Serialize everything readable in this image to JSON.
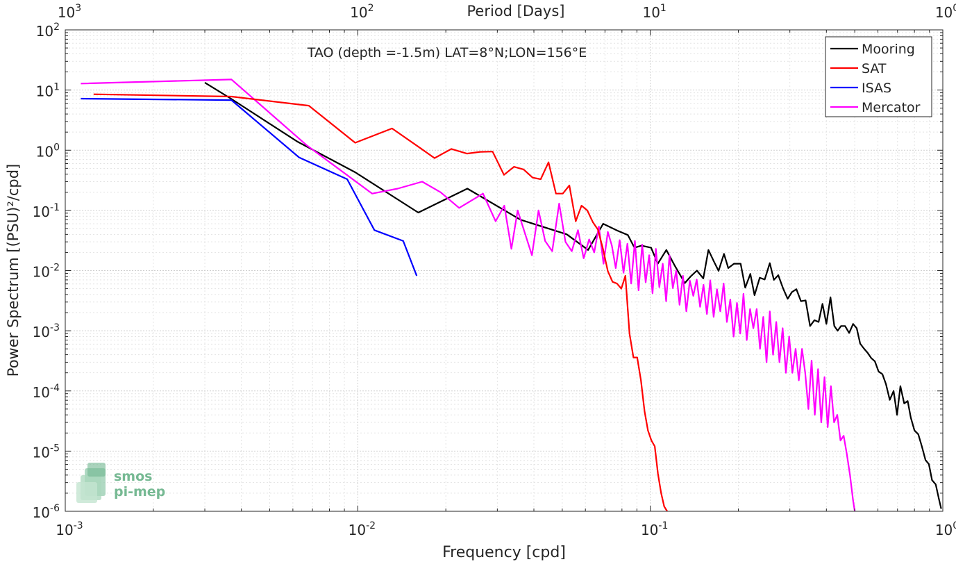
{
  "chart_data": {
    "type": "line",
    "title": "TAO (depth =-1.5m) LAT=8°N;LON=156°E",
    "xlabel": "Frequency [cpd]",
    "ylabel": "Power Spectrum [(PSU)²/cpd]",
    "top_xlabel": "Period [Days]",
    "x_scale": "log",
    "y_scale": "log",
    "xlim": [
      0.001,
      1
    ],
    "ylim": [
      1e-06,
      100
    ],
    "grid": true,
    "legend_position": "top-right",
    "x_ticks": [
      0.001,
      0.01,
      0.1,
      1
    ],
    "x_tick_labels": [
      {
        "base": "10",
        "exp": "-3"
      },
      {
        "base": "10",
        "exp": "-2"
      },
      {
        "base": "10",
        "exp": "-1"
      },
      {
        "base": "10",
        "exp": "0"
      }
    ],
    "y_ticks": [
      1e-06,
      1e-05,
      0.0001,
      0.001,
      0.01,
      0.1,
      1,
      10,
      100
    ],
    "y_tick_labels": [
      {
        "base": "10",
        "exp": "-6"
      },
      {
        "base": "10",
        "exp": "-5"
      },
      {
        "base": "10",
        "exp": "-4"
      },
      {
        "base": "10",
        "exp": "-3"
      },
      {
        "base": "10",
        "exp": "-2"
      },
      {
        "base": "10",
        "exp": "-1"
      },
      {
        "base": "10",
        "exp": "0"
      },
      {
        "base": "10",
        "exp": "1"
      },
      {
        "base": "10",
        "exp": "2"
      }
    ],
    "top_ticks_freq": [
      0.001,
      0.01,
      0.1,
      1
    ],
    "top_tick_labels": [
      {
        "base": "10",
        "exp": "3"
      },
      {
        "base": "10",
        "exp": "2"
      },
      {
        "base": "10",
        "exp": "1"
      },
      {
        "base": "10",
        "exp": "0"
      }
    ],
    "series": [
      {
        "name": "Mooring",
        "color": "#000000",
        "x": [
          0.003,
          0.0037,
          0.0062,
          0.0098,
          0.0161,
          0.0237,
          0.036,
          0.0518,
          0.0613,
          0.069,
          0.0773,
          0.0838,
          0.0883,
          0.0933,
          0.1006,
          0.1061,
          0.1135,
          0.1213,
          0.1312,
          0.1378,
          0.1443,
          0.1518,
          0.158,
          0.1652,
          0.1712,
          0.1786,
          0.1848,
          0.1932,
          0.2036,
          0.2111,
          0.2198,
          0.2271,
          0.2366,
          0.246,
          0.2562,
          0.2646,
          0.2739,
          0.2842,
          0.2948,
          0.305,
          0.3158,
          0.3275,
          0.3396,
          0.3517,
          0.3641,
          0.3762,
          0.3878,
          0.3999,
          0.4131,
          0.4257,
          0.4369,
          0.4487,
          0.4632,
          0.4784,
          0.4935,
          0.5079,
          0.5219,
          0.5369,
          0.5532,
          0.5695,
          0.586,
          0.6033,
          0.6216,
          0.6393,
          0.6585,
          0.6786,
          0.6975,
          0.7163,
          0.7378,
          0.7584,
          0.7775,
          0.8003,
          0.8247,
          0.8479,
          0.8727,
          0.8958,
          0.9187,
          0.9456,
          0.9698,
          0.9876
        ],
        "y": [
          13.3,
          7.1,
          1.4,
          0.43,
          0.092,
          0.23,
          0.07,
          0.04,
          0.022,
          0.06,
          0.046,
          0.039,
          0.024,
          0.026,
          0.024,
          0.013,
          0.022,
          0.012,
          0.0062,
          0.0081,
          0.01,
          0.0074,
          0.022,
          0.014,
          0.0099,
          0.019,
          0.011,
          0.013,
          0.013,
          0.0052,
          0.0088,
          0.0039,
          0.0076,
          0.0071,
          0.0133,
          0.007,
          0.0084,
          0.0051,
          0.0034,
          0.0044,
          0.0049,
          0.0031,
          0.0032,
          0.0012,
          0.0015,
          0.0014,
          0.0028,
          0.0013,
          0.0036,
          0.0012,
          0.001,
          0.0012,
          0.0012,
          0.00092,
          0.0013,
          0.0011,
          0.00061,
          0.00051,
          0.00043,
          0.00035,
          0.00031,
          0.00021,
          0.00019,
          0.00013,
          7.1e-05,
          0.0001,
          4e-05,
          0.00012,
          6.2e-05,
          6.8e-05,
          3.6e-05,
          2.2e-05,
          1.9e-05,
          1.2e-05,
          7.1e-06,
          6.1e-06,
          3.3e-06,
          2.8e-06,
          1.6e-06,
          1.1e-06
        ]
      },
      {
        "name": "SAT",
        "color": "#ff0000",
        "x": [
          0.00125,
          0.0037,
          0.0068,
          0.0098,
          0.0131,
          0.0163,
          0.0183,
          0.0209,
          0.0236,
          0.0262,
          0.0289,
          0.0316,
          0.0342,
          0.0369,
          0.0396,
          0.0422,
          0.0449,
          0.0476,
          0.0502,
          0.0529,
          0.0556,
          0.0582,
          0.0609,
          0.0636,
          0.0662,
          0.0689,
          0.0716,
          0.0743,
          0.0769,
          0.0796,
          0.0822,
          0.0849,
          0.0876,
          0.0902,
          0.0929,
          0.0956,
          0.0982,
          0.1009,
          0.1036,
          0.1062,
          0.1089,
          0.1116,
          0.1142
        ],
        "y": [
          8.5,
          7.8,
          5.5,
          1.33,
          2.3,
          1.1,
          0.74,
          1.05,
          0.88,
          0.94,
          0.95,
          0.39,
          0.53,
          0.48,
          0.35,
          0.33,
          0.63,
          0.19,
          0.19,
          0.26,
          0.066,
          0.12,
          0.1,
          0.064,
          0.048,
          0.023,
          0.0098,
          0.0065,
          0.0061,
          0.005,
          0.0082,
          0.0009,
          0.00036,
          0.00036,
          0.00015,
          4.6e-05,
          2.2e-05,
          1.5e-05,
          1.2e-05,
          4.2e-06,
          2e-06,
          1.2e-06,
          1e-06
        ]
      },
      {
        "name": "ISAS",
        "color": "#0000ff",
        "x": [
          0.00113,
          0.0037,
          0.0063,
          0.0092,
          0.0114,
          0.0143,
          0.0159
        ],
        "y": [
          7.2,
          6.8,
          0.76,
          0.33,
          0.047,
          0.031,
          0.0082
        ]
      },
      {
        "name": "Mercator",
        "color": "#ff00ff",
        "x": [
          0.00113,
          0.0037,
          0.0067,
          0.0112,
          0.0137,
          0.0166,
          0.0192,
          0.0222,
          0.0268,
          0.0296,
          0.0317,
          0.0335,
          0.0352,
          0.0371,
          0.0394,
          0.0415,
          0.0437,
          0.0462,
          0.0488,
          0.0513,
          0.0539,
          0.0566,
          0.0592,
          0.0618,
          0.0643,
          0.0667,
          0.0692,
          0.0716,
          0.0739,
          0.0762,
          0.0786,
          0.081,
          0.0835,
          0.086,
          0.0886,
          0.0912,
          0.0938,
          0.0964,
          0.0991,
          0.1018,
          0.1045,
          0.1074,
          0.1103,
          0.1133,
          0.1163,
          0.1194,
          0.1226,
          0.1259,
          0.1293,
          0.1328,
          0.1365,
          0.1403,
          0.1441,
          0.148,
          0.152,
          0.1561,
          0.1603,
          0.1646,
          0.169,
          0.1735,
          0.1781,
          0.1828,
          0.1877,
          0.1927,
          0.1978,
          0.203,
          0.2083,
          0.2137,
          0.2193,
          0.2251,
          0.2311,
          0.2372,
          0.2434,
          0.2497,
          0.2562,
          0.2628,
          0.2695,
          0.2764,
          0.2835,
          0.2908,
          0.2983,
          0.306,
          0.3139,
          0.3219,
          0.3301,
          0.3385,
          0.3472,
          0.356,
          0.3651,
          0.3745,
          0.3841,
          0.394,
          0.4041,
          0.4144,
          0.425,
          0.4358,
          0.4469,
          0.4582,
          0.4697,
          0.4815,
          0.4936,
          0.5
        ],
        "y": [
          12.8,
          15,
          1.2,
          0.19,
          0.23,
          0.3,
          0.2,
          0.11,
          0.19,
          0.066,
          0.12,
          0.023,
          0.1,
          0.045,
          0.018,
          0.1,
          0.031,
          0.021,
          0.13,
          0.03,
          0.021,
          0.047,
          0.016,
          0.033,
          0.02,
          0.054,
          0.013,
          0.044,
          0.026,
          0.011,
          0.032,
          0.0092,
          0.028,
          0.0061,
          0.031,
          0.0047,
          0.027,
          0.0064,
          0.018,
          0.0042,
          0.023,
          0.0053,
          0.013,
          0.0031,
          0.018,
          0.0051,
          0.01,
          0.0027,
          0.0082,
          0.0021,
          0.0068,
          0.0038,
          0.0071,
          0.0025,
          0.0058,
          0.0019,
          0.0069,
          0.0017,
          0.0049,
          0.0021,
          0.0061,
          0.0014,
          0.0033,
          0.0008,
          0.0029,
          0.0009,
          0.0041,
          0.0007,
          0.0023,
          0.0011,
          0.0023,
          0.0005,
          0.0017,
          0.0003,
          0.0021,
          0.0004,
          0.0014,
          0.0003,
          0.0011,
          0.0002,
          0.0008,
          0.0002,
          0.0005,
          0.00015,
          0.0005,
          0.0002,
          5e-05,
          0.00032,
          4e-05,
          0.00023,
          3e-05,
          0.00017,
          2.5e-05,
          0.00012,
          3e-05,
          4e-05,
          1.5e-05,
          1.8e-05,
          9e-06,
          4e-06,
          1.5e-06,
          1e-06
        ]
      }
    ]
  },
  "logo": {
    "line1": "smos",
    "line2": "pi-mep"
  }
}
